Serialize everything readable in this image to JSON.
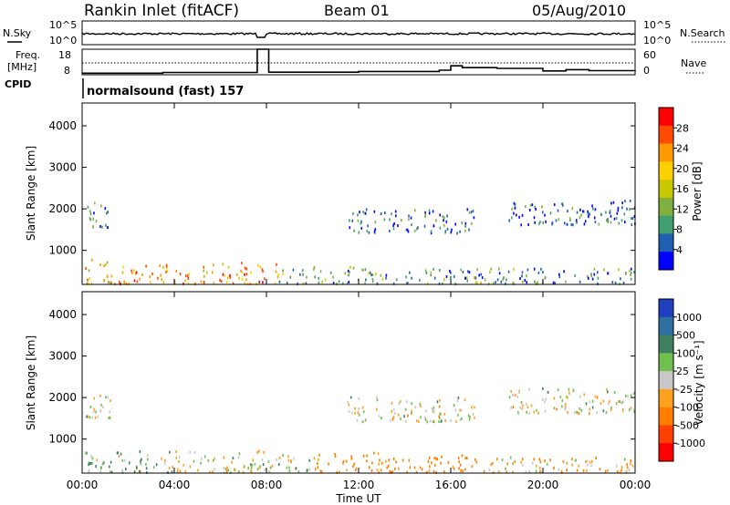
{
  "header": {
    "title": "Rankin Inlet (fitACF)",
    "beam": "Beam 01",
    "date": "05/Aug/2010"
  },
  "noise_panel": {
    "left_label": "N.Sky",
    "left_top_tick": "10^5",
    "left_bottom_tick": "10^0",
    "right_label": "N.Search",
    "right_top_tick": "10^5",
    "right_bottom_tick": "10^0"
  },
  "freq_panel": {
    "left_label_line1": "Freq.",
    "left_label_line2": "[MHz]",
    "left_ticks": [
      "18",
      "8"
    ],
    "right_label": "Nave",
    "right_ticks": [
      "60",
      "0"
    ],
    "cpid_label": "CPID",
    "cpid_text": "normalsound (fast) 157"
  },
  "power_panel": {
    "ylabel": "Slant Range [km]",
    "colorbar_label": "Power [dB]",
    "colorbar_ticks": [
      "28",
      "24",
      "20",
      "16",
      "12",
      "8",
      "4"
    ],
    "colorbar_colors": [
      "#ff0000",
      "#ff4a00",
      "#ff9a00",
      "#ffd000",
      "#c8c800",
      "#80b040",
      "#40a070",
      "#2060b0",
      "#0000ff"
    ]
  },
  "velocity_panel": {
    "ylabel": "Slant Range [km]",
    "colorbar_label": "Velocity [m s⁻¹]",
    "colorbar_ticks": [
      "1000",
      "500",
      "100",
      "25",
      "-25",
      "-100",
      "-500",
      "-1000"
    ],
    "colorbar_colors": [
      "#2040c0",
      "#3070a0",
      "#408060",
      "#70c050",
      "#c8c8c8",
      "#ffa020",
      "#ff8000",
      "#ff4000",
      "#ff0000"
    ]
  },
  "chart_data": {
    "type": "heatmap",
    "x_tick_labels": [
      "00:00",
      "04:00",
      "08:00",
      "12:00",
      "16:00",
      "20:00",
      "00:00"
    ],
    "xlabel": "Time UT",
    "x_range_hours": [
      0,
      24
    ],
    "y_range_km": [
      180,
      4550
    ],
    "y_tick_labels": [
      "1000",
      "2000",
      "3000",
      "4000"
    ],
    "y_ticks_km": [
      1000,
      2000,
      3000,
      4000
    ],
    "power_scale_db": [
      0,
      30
    ],
    "velocity_scale_ms": [
      -1000,
      1000
    ],
    "freq_range_mhz": [
      8,
      18
    ],
    "nave_range": [
      0,
      60
    ],
    "freq_trace": [
      [
        0,
        8.6
      ],
      [
        3.5,
        8.9
      ],
      [
        7.5,
        8.9
      ],
      [
        7.6,
        18
      ],
      [
        8.0,
        18
      ],
      [
        8.1,
        9.0
      ],
      [
        10,
        9.0
      ],
      [
        12,
        9.3
      ],
      [
        14,
        9.3
      ],
      [
        15.5,
        9.8
      ],
      [
        16,
        11.5
      ],
      [
        16.5,
        10.8
      ],
      [
        18,
        10.5
      ],
      [
        20,
        9.5
      ],
      [
        21,
        10.0
      ],
      [
        22,
        9.6
      ],
      [
        24,
        9.8
      ]
    ],
    "power_regions": [
      {
        "t0": 0.1,
        "t1": 1.5,
        "r0": 180,
        "r1": 800,
        "db": 18
      },
      {
        "t0": 1.5,
        "t1": 4.0,
        "r0": 180,
        "r1": 700,
        "db": 22
      },
      {
        "t0": 4.0,
        "t1": 6.0,
        "r0": 180,
        "r1": 650,
        "db": 20
      },
      {
        "t0": 6.0,
        "t1": 8.5,
        "r0": 180,
        "r1": 700,
        "db": 22
      },
      {
        "t0": 8.5,
        "t1": 13.0,
        "r0": 180,
        "r1": 600,
        "db": 10
      },
      {
        "t0": 13.0,
        "t1": 18.0,
        "r0": 180,
        "r1": 550,
        "db": 8
      },
      {
        "t0": 18.0,
        "t1": 24.0,
        "r0": 180,
        "r1": 550,
        "db": 7
      },
      {
        "t0": 0.1,
        "t1": 1.2,
        "r0": 1500,
        "r1": 2200,
        "db": 6
      },
      {
        "t0": 11.5,
        "t1": 17.0,
        "r0": 1400,
        "r1": 2000,
        "db": 6
      },
      {
        "t0": 18.5,
        "t1": 24.0,
        "r0": 1600,
        "r1": 2200,
        "db": 5
      }
    ],
    "velocity_regions": [
      {
        "t0": 0.1,
        "t1": 4.0,
        "r0": 180,
        "r1": 700,
        "v": 60
      },
      {
        "t0": 4.0,
        "t1": 8.0,
        "r0": 180,
        "r1": 700,
        "v": 0
      },
      {
        "t0": 8.0,
        "t1": 10.0,
        "r0": 180,
        "r1": 600,
        "v": 30
      },
      {
        "t0": 10.0,
        "t1": 13.5,
        "r0": 180,
        "r1": 650,
        "v": -150
      },
      {
        "t0": 13.5,
        "t1": 17.5,
        "r0": 180,
        "r1": 600,
        "v": -200
      },
      {
        "t0": 17.5,
        "t1": 24.0,
        "r0": 180,
        "r1": 550,
        "v": -60
      },
      {
        "t0": 0.1,
        "t1": 1.2,
        "r0": 1500,
        "r1": 2200,
        "v": 0
      },
      {
        "t0": 11.5,
        "t1": 17.0,
        "r0": 1400,
        "r1": 2000,
        "v": 0
      },
      {
        "t0": 18.5,
        "t1": 24.0,
        "r0": 1600,
        "r1": 2200,
        "v": 0
      }
    ]
  }
}
